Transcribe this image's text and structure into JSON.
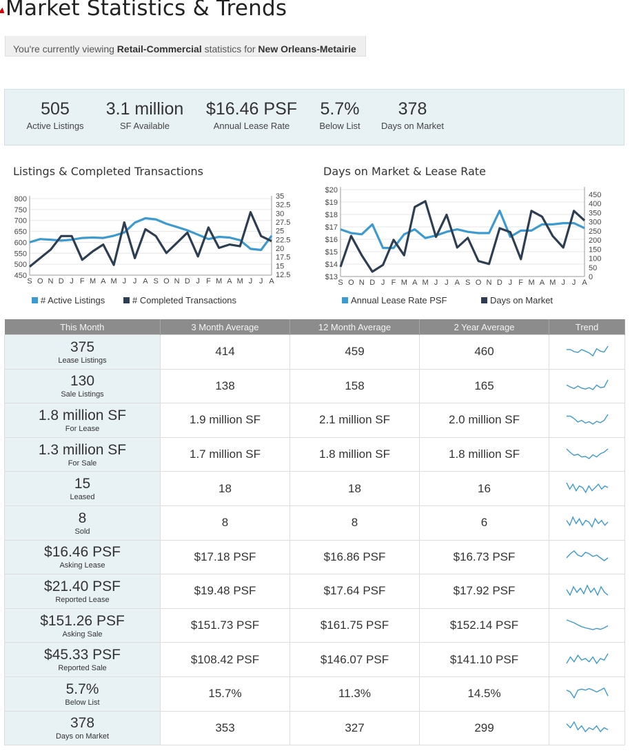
{
  "page": {
    "title": "Market Statistics & Trends",
    "viewing_prefix": "You're currently viewing ",
    "property_type": "Retail-Commercial",
    "viewing_mid": " statistics for ",
    "market": "New Orleans-Metairie"
  },
  "summary": [
    {
      "value": "505",
      "label": "Active Listings"
    },
    {
      "value": "3.1 million",
      "label": "SF Available"
    },
    {
      "value": "$16.46 PSF",
      "label": "Annual Lease Rate"
    },
    {
      "value": "5.7%",
      "label": "Below List"
    },
    {
      "value": "378",
      "label": "Days on Market"
    }
  ],
  "colors": {
    "active_listings": "#3b9ad0",
    "completed_transactions": "#2e3e52",
    "days_on_market": "#2e3e52",
    "lease_rate": "#3b9ad0"
  },
  "chart_data": [
    {
      "type": "line",
      "title": "Listings & Completed Transactions",
      "categories": [
        "S",
        "O",
        "N",
        "D",
        "J",
        "F",
        "M",
        "A",
        "M",
        "J",
        "J",
        "A",
        "S",
        "O",
        "N",
        "D",
        "J",
        "F",
        "M",
        "A",
        "M",
        "J",
        "J",
        "A"
      ],
      "y_left_ticks": [
        "800",
        "750",
        "700",
        "650",
        "600",
        "550",
        "500",
        "450"
      ],
      "y_right_ticks": [
        "35",
        "32.5",
        "30",
        "27.5",
        "25",
        "22.5",
        "20",
        "17.5",
        "15",
        "12.5"
      ],
      "ylim_left": [
        450,
        800
      ],
      "ylim_right": [
        12.5,
        35
      ],
      "series": [
        {
          "name": "# Active Listings",
          "axis": "left",
          "values": [
            600,
            615,
            612,
            608,
            612,
            620,
            622,
            620,
            630,
            645,
            690,
            710,
            705,
            685,
            670,
            655,
            635,
            615,
            625,
            622,
            610,
            570,
            565,
            630
          ]
        },
        {
          "name": "# Completed Transactions",
          "axis": "right",
          "values": [
            15,
            17.5,
            20,
            24,
            24,
            17,
            19.5,
            21.5,
            15.5,
            28,
            17.5,
            26,
            24,
            19,
            22,
            25,
            18,
            26.5,
            20.5,
            21.5,
            21,
            31,
            24,
            22.5
          ]
        }
      ]
    },
    {
      "type": "line",
      "title": "Days on Market & Lease Rate",
      "categories": [
        "S",
        "O",
        "N",
        "D",
        "J",
        "F",
        "M",
        "A",
        "M",
        "J",
        "J",
        "A",
        "S",
        "O",
        "N",
        "D",
        "J",
        "F",
        "M",
        "A",
        "M",
        "J",
        "J",
        "A"
      ],
      "y_left_ticks": [
        "$20",
        "$19",
        "$18",
        "$17",
        "$16",
        "$15",
        "$14",
        "$13"
      ],
      "y_right_ticks": [
        "450",
        "400",
        "350",
        "300",
        "250",
        "200",
        "150",
        "100",
        "50",
        "0"
      ],
      "ylim_left": [
        13,
        20
      ],
      "ylim_right": [
        0,
        450
      ],
      "series": [
        {
          "name": "Annual Lease Rate PSF",
          "axis": "left",
          "values": [
            16.8,
            16.5,
            16.4,
            17.2,
            15.3,
            15.3,
            16.4,
            16.8,
            16.1,
            16.3,
            16.6,
            16.8,
            16.6,
            16.5,
            16.5,
            18.3,
            16.2,
            16.7,
            16.7,
            17.2,
            17.2,
            17.3,
            17.3,
            16.9
          ]
        },
        {
          "name": "Days on Market",
          "axis": "right",
          "values": [
            50,
            210,
            110,
            25,
            60,
            190,
            110,
            360,
            390,
            205,
            320,
            150,
            200,
            80,
            65,
            250,
            230,
            90,
            340,
            310,
            210,
            150,
            340,
            290
          ]
        }
      ]
    }
  ],
  "table": {
    "headers": [
      "This Month",
      "3 Month Average",
      "12 Month Average",
      "2 Year Average",
      "Trend"
    ],
    "rows": [
      {
        "value": "375",
        "label": "Lease Listings",
        "m3": "414",
        "m12": "459",
        "y2": "460",
        "trend": [
          5,
          5,
          4.5,
          4.3,
          5,
          4.6,
          4.2,
          3.5,
          5.2,
          4.6,
          4.4,
          5.8
        ]
      },
      {
        "value": "130",
        "label": "Sale Listings",
        "m3": "138",
        "m12": "158",
        "y2": "165",
        "trend": [
          4,
          3.6,
          3.3,
          3.8,
          3.4,
          3.2,
          3.5,
          3.1,
          4,
          3.5,
          3.6,
          5
        ]
      },
      {
        "value": "1.8 million SF",
        "label": "For Lease",
        "m3": "1.9 million SF",
        "m12": "2.1 million SF",
        "y2": "2.0 million SF",
        "trend": [
          5.5,
          5.5,
          4.8,
          3.8,
          4.3,
          3.5,
          3.9,
          3.2,
          4,
          3.6,
          4.3,
          6
        ]
      },
      {
        "value": "1.3 million SF",
        "label": "For Sale",
        "m3": "1.7 million SF",
        "m12": "1.8 million SF",
        "y2": "1.8 million SF",
        "trend": [
          5,
          4.3,
          3.8,
          4,
          3.5,
          3.6,
          3.2,
          3.9,
          3.5,
          4.1,
          4.4,
          5
        ]
      },
      {
        "value": "15",
        "label": "Leased",
        "m3": "18",
        "m12": "18",
        "y2": "16",
        "trend": [
          7,
          3,
          6,
          2,
          5,
          4,
          1,
          5,
          2,
          4,
          6,
          3,
          5,
          4
        ]
      },
      {
        "value": "8",
        "label": "Sold",
        "m3": "8",
        "m12": "8",
        "y2": "6",
        "trend": [
          5,
          2,
          7,
          3,
          6,
          2,
          5,
          4,
          1,
          6,
          3,
          5,
          2,
          4
        ]
      },
      {
        "value": "$16.46 PSF",
        "label": "Asking Lease",
        "m3": "$17.18 PSF",
        "m12": "$16.86 PSF",
        "y2": "$16.73 PSF",
        "trend": [
          4,
          4.3,
          4.5,
          4.2,
          4.1,
          4.4,
          4.3,
          4.1,
          4.2,
          4,
          3.8,
          4
        ]
      },
      {
        "value": "$21.40 PSF",
        "label": "Reported Lease",
        "m3": "$19.48 PSF",
        "m12": "$17.64 PSF",
        "y2": "$17.92 PSF",
        "trend": [
          4,
          2,
          5,
          3,
          4.5,
          2.5,
          5.5,
          3,
          4.5,
          2,
          5,
          3,
          2
        ]
      },
      {
        "value": "$151.26 PSF",
        "label": "Asking Sale",
        "m3": "$151.73 PSF",
        "m12": "$161.75 PSF",
        "y2": "$152.14 PSF",
        "trend": [
          6.5,
          6,
          5.5,
          4.8,
          4.2,
          3.8,
          3.5,
          3.2,
          3.6,
          3.3,
          3.8,
          4.5
        ]
      },
      {
        "value": "$45.33 PSF",
        "label": "Reported Sale",
        "m3": "$108.42 PSF",
        "m12": "$146.07 PSF",
        "y2": "$141.10 PSF",
        "trend": [
          2,
          6,
          3,
          7,
          4,
          5,
          3,
          6,
          2,
          5,
          4,
          8
        ]
      },
      {
        "value": "5.7%",
        "label": "Below List",
        "m3": "15.7%",
        "m12": "11.3%",
        "y2": "14.5%",
        "trend": [
          5,
          4,
          1,
          5,
          5.5,
          5,
          5.8,
          5,
          4,
          5,
          6,
          2
        ]
      },
      {
        "value": "378",
        "label": "Days on Market",
        "m3": "353",
        "m12": "327",
        "y2": "299",
        "trend": [
          6,
          4,
          7,
          3,
          5,
          2,
          4,
          3,
          5,
          2,
          4,
          3
        ]
      }
    ]
  }
}
